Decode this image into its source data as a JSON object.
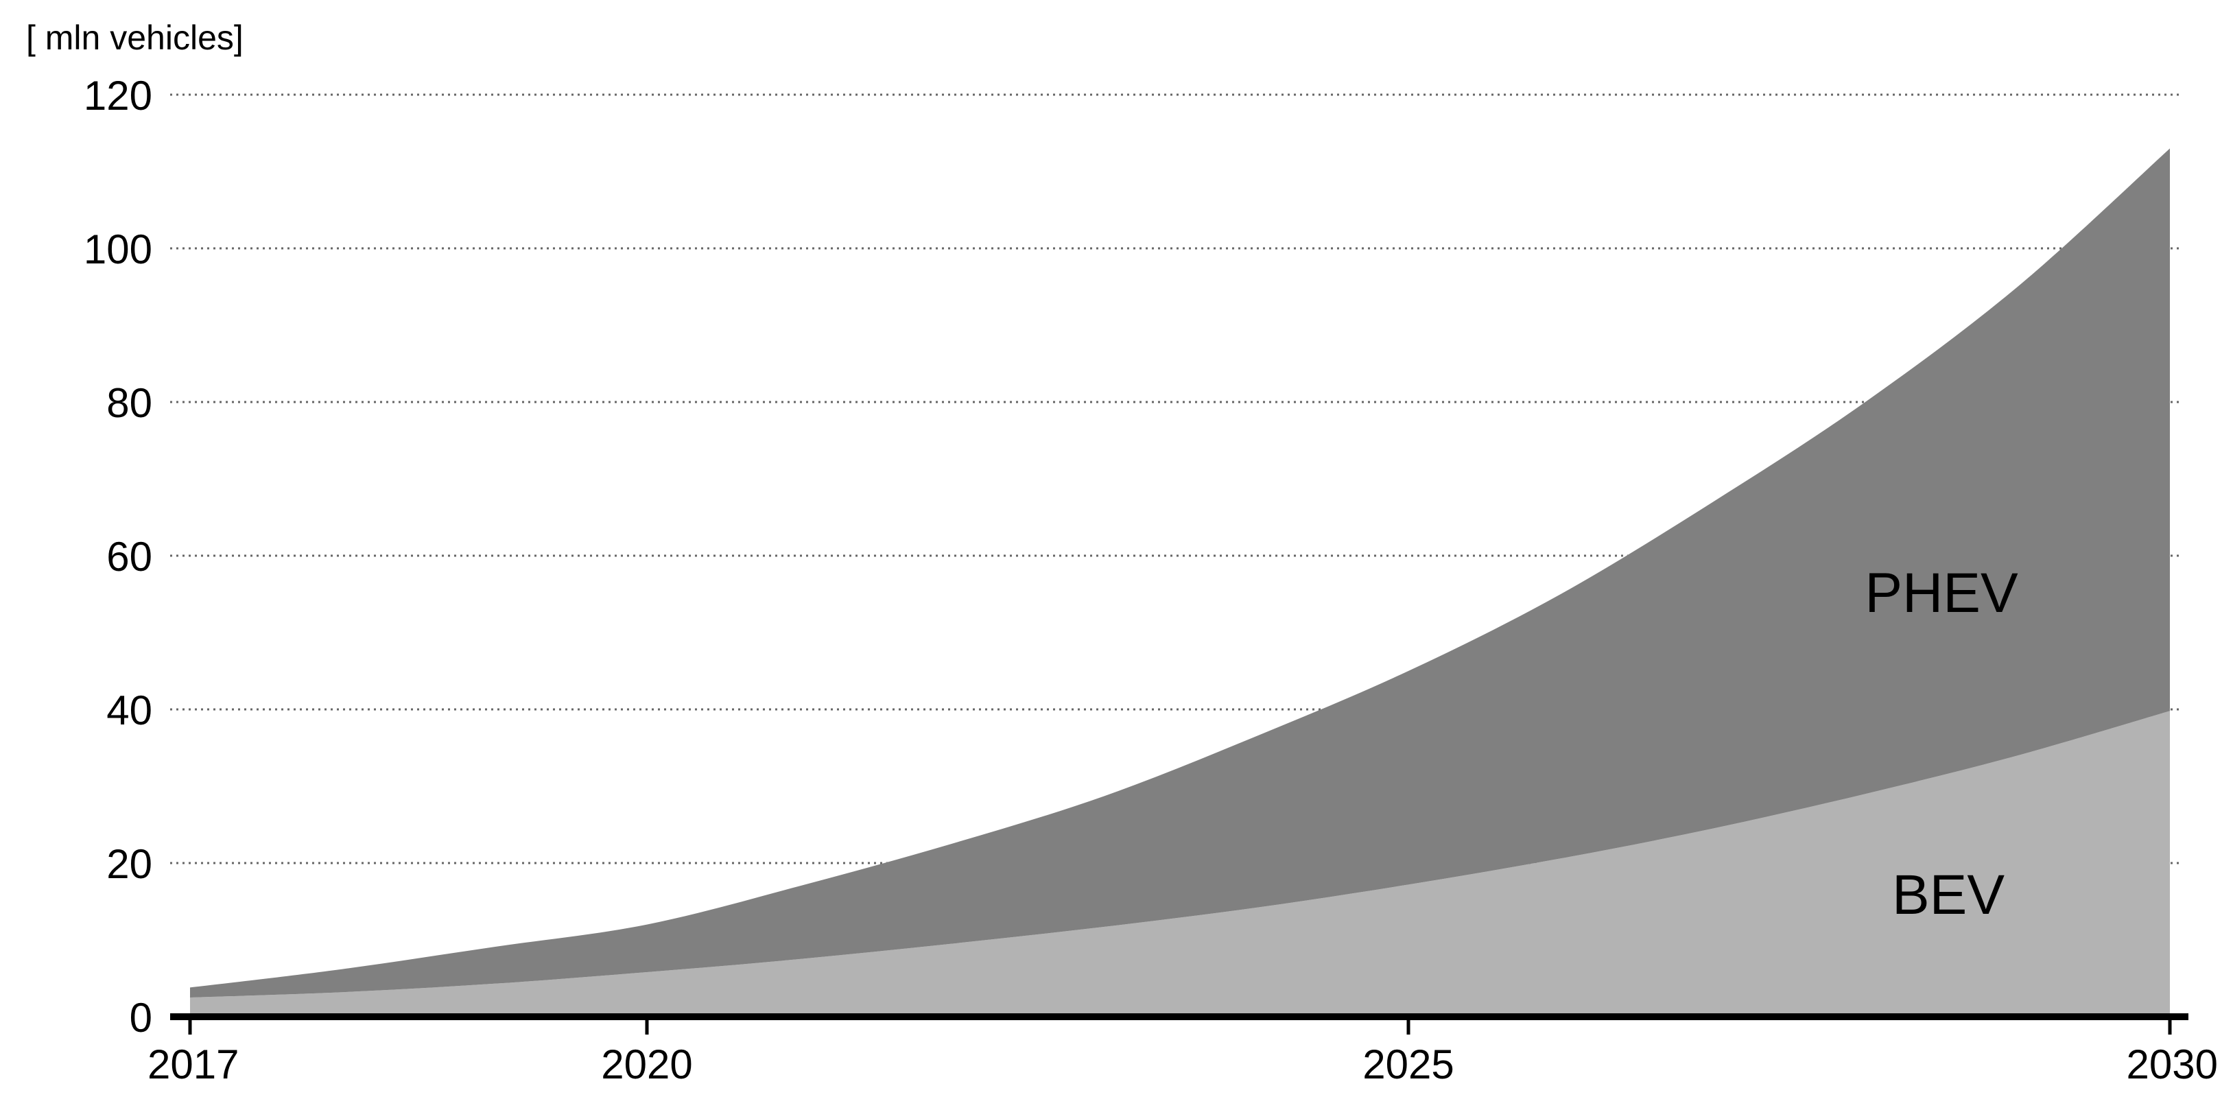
{
  "chart_data": {
    "type": "area",
    "stacked": true,
    "unit_label": "[ mln vehicles]",
    "x": [
      2017,
      2018,
      2019,
      2020,
      2021,
      2022,
      2023,
      2024,
      2025,
      2026,
      2027,
      2028,
      2029,
      2030
    ],
    "x_ticks": [
      "2017",
      "2020",
      "2025",
      "2030"
    ],
    "y_ticks": [
      "0",
      "20",
      "40",
      "60",
      "80",
      "100",
      "120"
    ],
    "ylim": [
      0,
      120
    ],
    "grid": "horizontal dotted",
    "series": [
      {
        "name": "BEV",
        "values": [
          2.5,
          3.2,
          4.3,
          5.8,
          7.5,
          9.5,
          11.7,
          14.2,
          17.2,
          20.6,
          24.5,
          29.0,
          34.0,
          39.8
        ],
        "color": "#b3b3b3"
      },
      {
        "name": "PHEV",
        "values": [
          1.3,
          3.0,
          4.8,
          6.2,
          9.5,
          13.0,
          17.0,
          22.3,
          27.8,
          34.4,
          42.5,
          51.0,
          61.0,
          73.2
        ],
        "color": "#808080"
      }
    ],
    "totals": [
      3.8,
      6.2,
      9.1,
      12.0,
      17.0,
      22.5,
      28.7,
      36.5,
      45.0,
      55.0,
      67.0,
      80.0,
      95.0,
      113.0
    ]
  }
}
